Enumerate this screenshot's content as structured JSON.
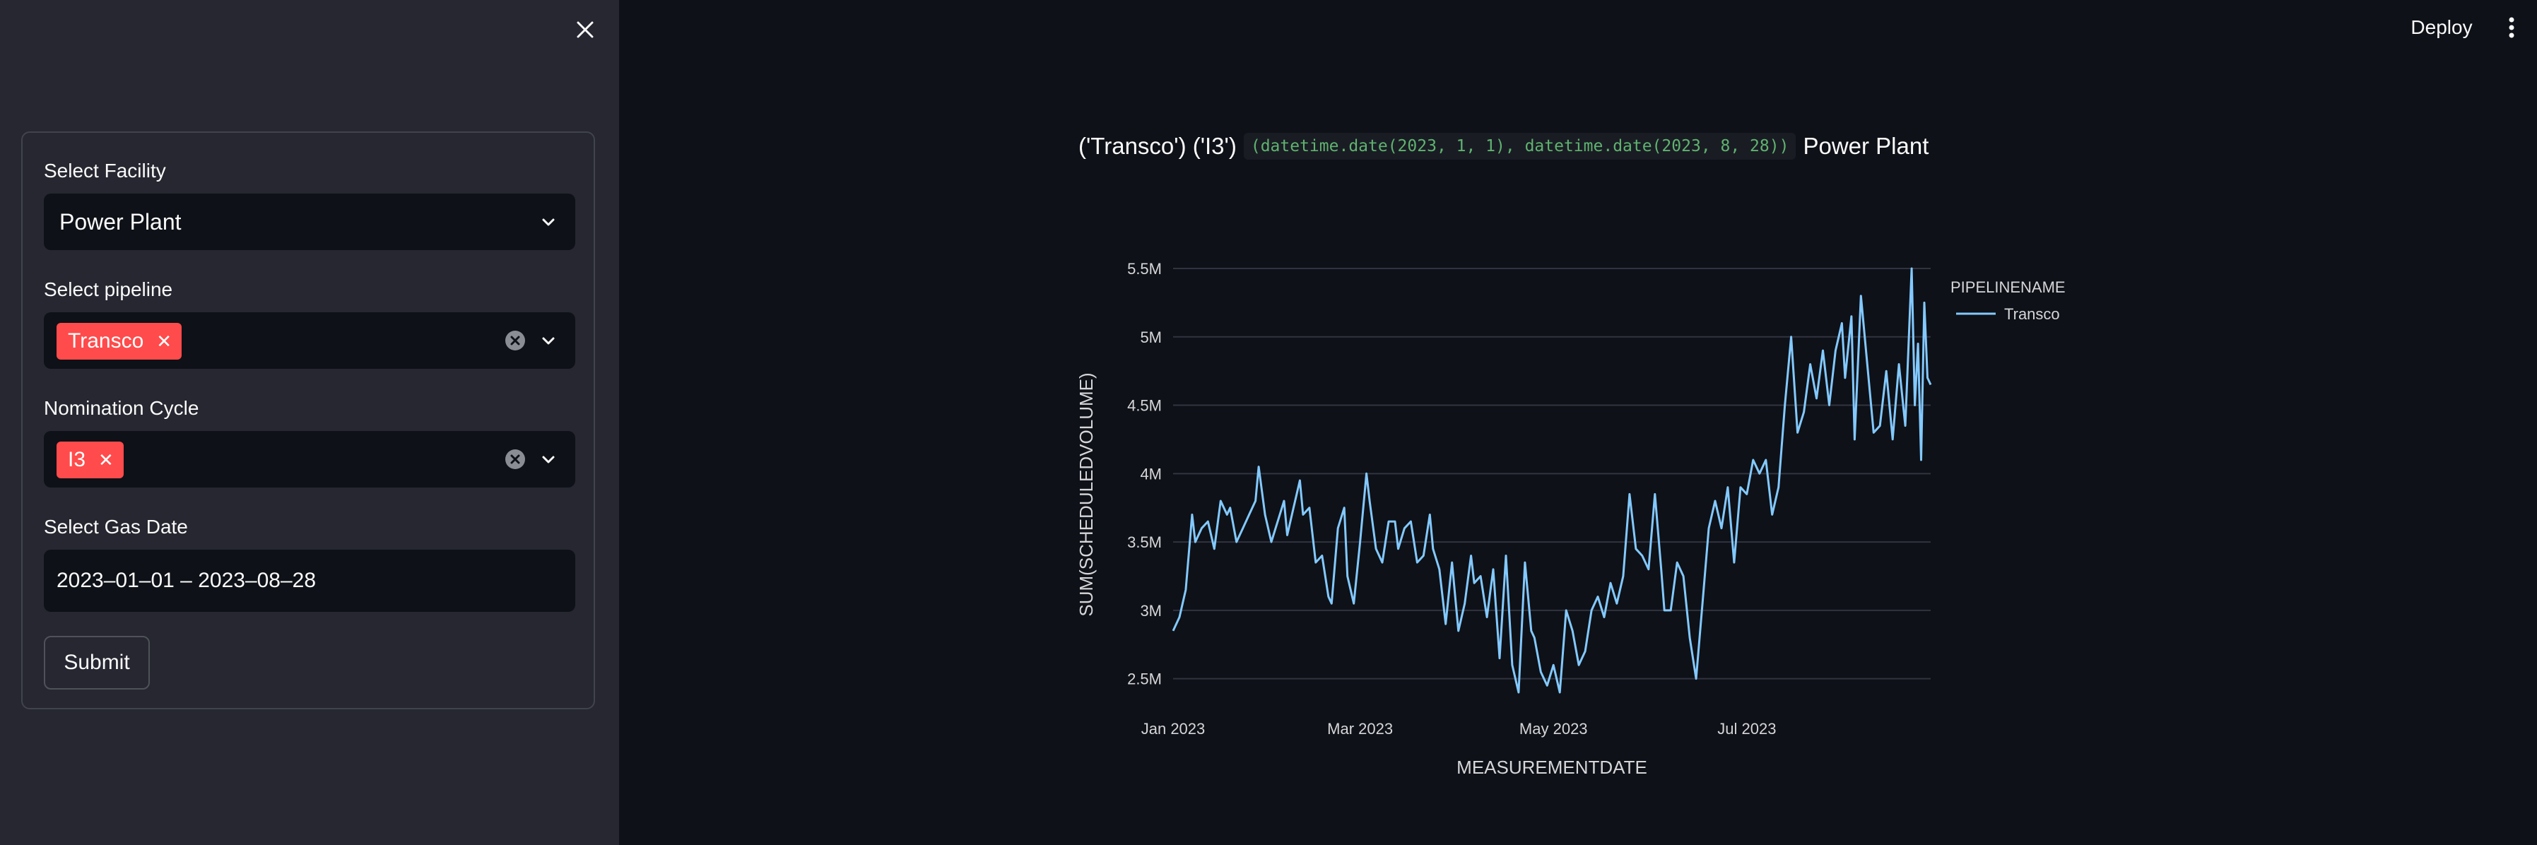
{
  "sidebar": {
    "facility": {
      "label": "Select Facility",
      "value": "Power Plant"
    },
    "pipeline": {
      "label": "Select pipeline",
      "tags": [
        "Transco"
      ]
    },
    "cycle": {
      "label": "Nomination Cycle",
      "tags": [
        "I3"
      ]
    },
    "gas_date": {
      "label": "Select Gas Date",
      "value": "2023–01–01 – 2023–08–28"
    },
    "submit_label": "Submit"
  },
  "header": {
    "deploy_label": "Deploy"
  },
  "main": {
    "title_prefix": "('Transco') ('I3')",
    "title_code": "(datetime.date(2023, 1, 1), datetime.date(2023, 8, 28))",
    "title_suffix": "Power Plant"
  },
  "colors": {
    "accent": "#ff4b4b",
    "series": "#83c9ff",
    "code": "#5fb36f"
  },
  "chart_data": {
    "type": "line",
    "xlabel": "MEASUREMENTDATE",
    "ylabel": "SUM(SCHEDULEDVOLUME)",
    "x_start": "2023-01-01",
    "x_end": "2023-08-28",
    "ylim": [
      2400000,
      5500000
    ],
    "x_ticks": [
      {
        "date": "2023-01-01",
        "label": "Jan 2023"
      },
      {
        "date": "2023-03-01",
        "label": "Mar 2023"
      },
      {
        "date": "2023-05-01",
        "label": "May 2023"
      },
      {
        "date": "2023-07-01",
        "label": "Jul 2023"
      }
    ],
    "y_ticks": [
      {
        "value": 2500000,
        "label": "2.5M"
      },
      {
        "value": 3000000,
        "label": "3M"
      },
      {
        "value": 3500000,
        "label": "3.5M"
      },
      {
        "value": 4000000,
        "label": "4M"
      },
      {
        "value": 4500000,
        "label": "4.5M"
      },
      {
        "value": 5000000,
        "label": "5M"
      },
      {
        "value": 5500000,
        "label": "5.5M"
      }
    ],
    "legend": {
      "title": "PIPELINENAME",
      "placement": "right"
    },
    "grid": true,
    "series": [
      {
        "name": "Transco",
        "points": [
          [
            "2023-01-01",
            2850000
          ],
          [
            "2023-01-03",
            2950000
          ],
          [
            "2023-01-05",
            3150000
          ],
          [
            "2023-01-07",
            3700000
          ],
          [
            "2023-01-08",
            3500000
          ],
          [
            "2023-01-10",
            3600000
          ],
          [
            "2023-01-12",
            3650000
          ],
          [
            "2023-01-14",
            3450000
          ],
          [
            "2023-01-16",
            3800000
          ],
          [
            "2023-01-18",
            3700000
          ],
          [
            "2023-01-19",
            3750000
          ],
          [
            "2023-01-21",
            3500000
          ],
          [
            "2023-01-23",
            3600000
          ],
          [
            "2023-01-25",
            3700000
          ],
          [
            "2023-01-27",
            3800000
          ],
          [
            "2023-01-28",
            4050000
          ],
          [
            "2023-01-30",
            3700000
          ],
          [
            "2023-02-01",
            3500000
          ],
          [
            "2023-02-03",
            3650000
          ],
          [
            "2023-02-05",
            3800000
          ],
          [
            "2023-02-06",
            3550000
          ],
          [
            "2023-02-08",
            3750000
          ],
          [
            "2023-02-10",
            3950000
          ],
          [
            "2023-02-11",
            3700000
          ],
          [
            "2023-02-13",
            3750000
          ],
          [
            "2023-02-15",
            3350000
          ],
          [
            "2023-02-17",
            3400000
          ],
          [
            "2023-02-19",
            3100000
          ],
          [
            "2023-02-20",
            3050000
          ],
          [
            "2023-02-22",
            3600000
          ],
          [
            "2023-02-24",
            3750000
          ],
          [
            "2023-02-25",
            3250000
          ],
          [
            "2023-02-27",
            3050000
          ],
          [
            "2023-03-01",
            3500000
          ],
          [
            "2023-03-03",
            4000000
          ],
          [
            "2023-03-04",
            3800000
          ],
          [
            "2023-03-06",
            3450000
          ],
          [
            "2023-03-08",
            3350000
          ],
          [
            "2023-03-10",
            3650000
          ],
          [
            "2023-03-12",
            3650000
          ],
          [
            "2023-03-13",
            3450000
          ],
          [
            "2023-03-15",
            3600000
          ],
          [
            "2023-03-17",
            3650000
          ],
          [
            "2023-03-19",
            3350000
          ],
          [
            "2023-03-21",
            3400000
          ],
          [
            "2023-03-23",
            3700000
          ],
          [
            "2023-03-24",
            3450000
          ],
          [
            "2023-03-26",
            3300000
          ],
          [
            "2023-03-28",
            2900000
          ],
          [
            "2023-03-30",
            3350000
          ],
          [
            "2023-04-01",
            2850000
          ],
          [
            "2023-04-03",
            3050000
          ],
          [
            "2023-04-05",
            3400000
          ],
          [
            "2023-04-06",
            3200000
          ],
          [
            "2023-04-08",
            3250000
          ],
          [
            "2023-04-10",
            2950000
          ],
          [
            "2023-04-12",
            3300000
          ],
          [
            "2023-04-14",
            2650000
          ],
          [
            "2023-04-16",
            3400000
          ],
          [
            "2023-04-18",
            2600000
          ],
          [
            "2023-04-20",
            2400000
          ],
          [
            "2023-04-22",
            3350000
          ],
          [
            "2023-04-24",
            2850000
          ],
          [
            "2023-04-25",
            2800000
          ],
          [
            "2023-04-27",
            2550000
          ],
          [
            "2023-04-29",
            2450000
          ],
          [
            "2023-05-01",
            2600000
          ],
          [
            "2023-05-03",
            2400000
          ],
          [
            "2023-05-05",
            3000000
          ],
          [
            "2023-05-07",
            2850000
          ],
          [
            "2023-05-09",
            2600000
          ],
          [
            "2023-05-11",
            2700000
          ],
          [
            "2023-05-13",
            3000000
          ],
          [
            "2023-05-15",
            3100000
          ],
          [
            "2023-05-17",
            2950000
          ],
          [
            "2023-05-19",
            3200000
          ],
          [
            "2023-05-21",
            3050000
          ],
          [
            "2023-05-23",
            3250000
          ],
          [
            "2023-05-25",
            3850000
          ],
          [
            "2023-05-27",
            3450000
          ],
          [
            "2023-05-29",
            3400000
          ],
          [
            "2023-05-31",
            3300000
          ],
          [
            "2023-06-02",
            3850000
          ],
          [
            "2023-06-04",
            3300000
          ],
          [
            "2023-06-05",
            3000000
          ],
          [
            "2023-06-07",
            3000000
          ],
          [
            "2023-06-09",
            3350000
          ],
          [
            "2023-06-11",
            3250000
          ],
          [
            "2023-06-13",
            2800000
          ],
          [
            "2023-06-15",
            2500000
          ],
          [
            "2023-06-17",
            3050000
          ],
          [
            "2023-06-19",
            3600000
          ],
          [
            "2023-06-21",
            3800000
          ],
          [
            "2023-06-23",
            3600000
          ],
          [
            "2023-06-25",
            3900000
          ],
          [
            "2023-06-27",
            3350000
          ],
          [
            "2023-06-29",
            3900000
          ],
          [
            "2023-07-01",
            3850000
          ],
          [
            "2023-07-03",
            4100000
          ],
          [
            "2023-07-05",
            4000000
          ],
          [
            "2023-07-07",
            4100000
          ],
          [
            "2023-07-09",
            3700000
          ],
          [
            "2023-07-11",
            3900000
          ],
          [
            "2023-07-13",
            4500000
          ],
          [
            "2023-07-15",
            5000000
          ],
          [
            "2023-07-17",
            4300000
          ],
          [
            "2023-07-19",
            4450000
          ],
          [
            "2023-07-21",
            4800000
          ],
          [
            "2023-07-23",
            4550000
          ],
          [
            "2023-07-25",
            4900000
          ],
          [
            "2023-07-27",
            4500000
          ],
          [
            "2023-07-29",
            4900000
          ],
          [
            "2023-07-31",
            5100000
          ],
          [
            "2023-08-01",
            4700000
          ],
          [
            "2023-08-03",
            5150000
          ],
          [
            "2023-08-04",
            4250000
          ],
          [
            "2023-08-06",
            5300000
          ],
          [
            "2023-08-08",
            4800000
          ],
          [
            "2023-08-10",
            4300000
          ],
          [
            "2023-08-12",
            4350000
          ],
          [
            "2023-08-14",
            4750000
          ],
          [
            "2023-08-16",
            4250000
          ],
          [
            "2023-08-18",
            4800000
          ],
          [
            "2023-08-20",
            4350000
          ],
          [
            "2023-08-22",
            5500000
          ],
          [
            "2023-08-23",
            4500000
          ],
          [
            "2023-08-24",
            4950000
          ],
          [
            "2023-08-25",
            4100000
          ],
          [
            "2023-08-26",
            5250000
          ],
          [
            "2023-08-27",
            4700000
          ],
          [
            "2023-08-28",
            4650000
          ]
        ]
      }
    ]
  }
}
